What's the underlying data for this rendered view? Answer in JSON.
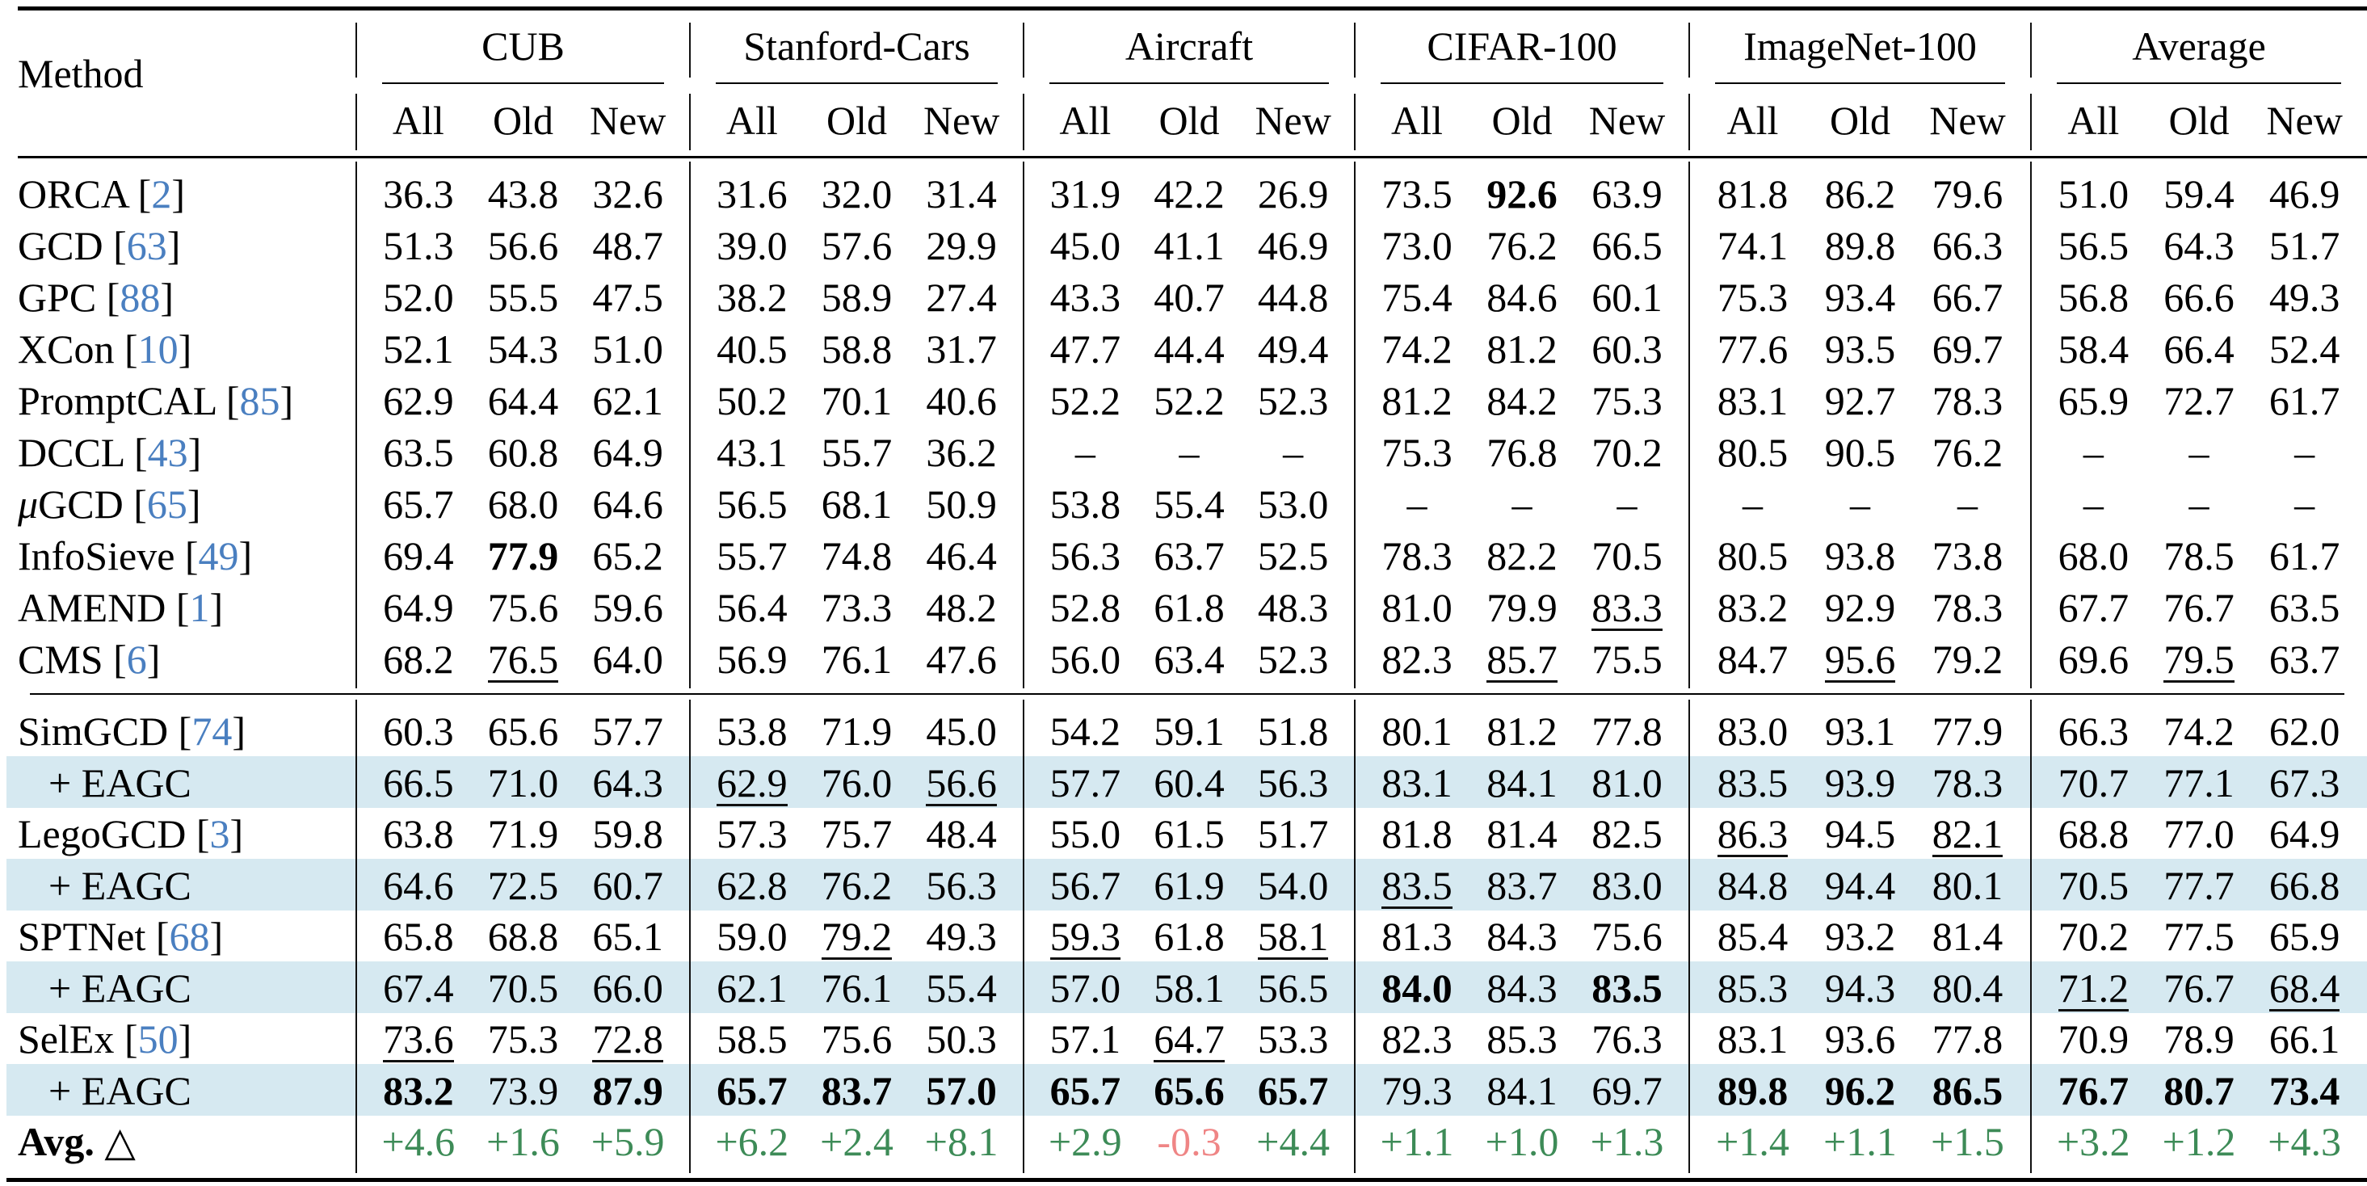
{
  "table": {
    "method_header": "Method",
    "datasets": [
      "CUB",
      "Stanford-Cars",
      "Aircraft",
      "CIFAR-100",
      "ImageNet-100",
      "Average"
    ],
    "subcolumns": [
      "All",
      "Old",
      "New"
    ],
    "avg_delta_label": "Avg. △",
    "colors": {
      "highlight_row": "#d6e9f1",
      "citation": "#4a7fc0",
      "positive_delta": "#3d8b57",
      "negative_delta": "#ef8585"
    },
    "blocks": [
      {
        "rows": [
          {
            "method": "ORCA",
            "cite": "2",
            "values": [
              "36.3",
              "43.8",
              "32.6",
              "31.6",
              "32.0",
              "31.4",
              "31.9",
              "42.2",
              "26.9",
              "73.5",
              "92.6",
              "63.9",
              "81.8",
              "86.2",
              "79.6",
              "51.0",
              "59.4",
              "46.9"
            ],
            "bold": [
              10
            ],
            "underline": []
          },
          {
            "method": "GCD",
            "cite": "63",
            "values": [
              "51.3",
              "56.6",
              "48.7",
              "39.0",
              "57.6",
              "29.9",
              "45.0",
              "41.1",
              "46.9",
              "73.0",
              "76.2",
              "66.5",
              "74.1",
              "89.8",
              "66.3",
              "56.5",
              "64.3",
              "51.7"
            ],
            "bold": [],
            "underline": []
          },
          {
            "method": "GPC",
            "cite": "88",
            "values": [
              "52.0",
              "55.5",
              "47.5",
              "38.2",
              "58.9",
              "27.4",
              "43.3",
              "40.7",
              "44.8",
              "75.4",
              "84.6",
              "60.1",
              "75.3",
              "93.4",
              "66.7",
              "56.8",
              "66.6",
              "49.3"
            ],
            "bold": [],
            "underline": []
          },
          {
            "method": "XCon",
            "cite": "10",
            "values": [
              "52.1",
              "54.3",
              "51.0",
              "40.5",
              "58.8",
              "31.7",
              "47.7",
              "44.4",
              "49.4",
              "74.2",
              "81.2",
              "60.3",
              "77.6",
              "93.5",
              "69.7",
              "58.4",
              "66.4",
              "52.4"
            ],
            "bold": [],
            "underline": []
          },
          {
            "method": "PromptCAL",
            "cite": "85",
            "values": [
              "62.9",
              "64.4",
              "62.1",
              "50.2",
              "70.1",
              "40.6",
              "52.2",
              "52.2",
              "52.3",
              "81.2",
              "84.2",
              "75.3",
              "83.1",
              "92.7",
              "78.3",
              "65.9",
              "72.7",
              "61.7"
            ],
            "bold": [],
            "underline": []
          },
          {
            "method": "DCCL",
            "cite": "43",
            "values": [
              "63.5",
              "60.8",
              "64.9",
              "43.1",
              "55.7",
              "36.2",
              "–",
              "–",
              "–",
              "75.3",
              "76.8",
              "70.2",
              "80.5",
              "90.5",
              "76.2",
              "–",
              "–",
              "–"
            ],
            "bold": [],
            "underline": []
          },
          {
            "method": "μGCD",
            "cite": "65",
            "values": [
              "65.7",
              "68.0",
              "64.6",
              "56.5",
              "68.1",
              "50.9",
              "53.8",
              "55.4",
              "53.0",
              "–",
              "–",
              "–",
              "–",
              "–",
              "–",
              "–",
              "–",
              "–"
            ],
            "bold": [],
            "underline": []
          },
          {
            "method": "InfoSieve",
            "cite": "49",
            "values": [
              "69.4",
              "77.9",
              "65.2",
              "55.7",
              "74.8",
              "46.4",
              "56.3",
              "63.7",
              "52.5",
              "78.3",
              "82.2",
              "70.5",
              "80.5",
              "93.8",
              "73.8",
              "68.0",
              "78.5",
              "61.7"
            ],
            "bold": [
              1
            ],
            "underline": []
          },
          {
            "method": "AMEND",
            "cite": "1",
            "values": [
              "64.9",
              "75.6",
              "59.6",
              "56.4",
              "73.3",
              "48.2",
              "52.8",
              "61.8",
              "48.3",
              "81.0",
              "79.9",
              "83.3",
              "83.2",
              "92.9",
              "78.3",
              "67.7",
              "76.7",
              "63.5"
            ],
            "bold": [],
            "underline": [
              11
            ]
          },
          {
            "method": "CMS",
            "cite": "6",
            "values": [
              "68.2",
              "76.5",
              "64.0",
              "56.9",
              "76.1",
              "47.6",
              "56.0",
              "63.4",
              "52.3",
              "82.3",
              "85.7",
              "75.5",
              "84.7",
              "95.6",
              "79.2",
              "69.6",
              "79.5",
              "63.7"
            ],
            "bold": [],
            "underline": [
              1,
              10,
              13,
              16
            ]
          }
        ]
      },
      {
        "rows": [
          {
            "method": "SimGCD",
            "cite": "74",
            "values": [
              "60.3",
              "65.6",
              "57.7",
              "53.8",
              "71.9",
              "45.0",
              "54.2",
              "59.1",
              "51.8",
              "80.1",
              "81.2",
              "77.8",
              "83.0",
              "93.1",
              "77.9",
              "66.3",
              "74.2",
              "62.0"
            ],
            "bold": [],
            "underline": []
          },
          {
            "method": "+ EAGC",
            "highlight": true,
            "values": [
              "66.5",
              "71.0",
              "64.3",
              "62.9",
              "76.0",
              "56.6",
              "57.7",
              "60.4",
              "56.3",
              "83.1",
              "84.1",
              "81.0",
              "83.5",
              "93.9",
              "78.3",
              "70.7",
              "77.1",
              "67.3"
            ],
            "bold": [],
            "underline": [
              3,
              5
            ]
          },
          {
            "method": "LegoGCD",
            "cite": "3",
            "values": [
              "63.8",
              "71.9",
              "59.8",
              "57.3",
              "75.7",
              "48.4",
              "55.0",
              "61.5",
              "51.7",
              "81.8",
              "81.4",
              "82.5",
              "86.3",
              "94.5",
              "82.1",
              "68.8",
              "77.0",
              "64.9"
            ],
            "bold": [],
            "underline": [
              12,
              14
            ]
          },
          {
            "method": "+ EAGC",
            "highlight": true,
            "values": [
              "64.6",
              "72.5",
              "60.7",
              "62.8",
              "76.2",
              "56.3",
              "56.7",
              "61.9",
              "54.0",
              "83.5",
              "83.7",
              "83.0",
              "84.8",
              "94.4",
              "80.1",
              "70.5",
              "77.7",
              "66.8"
            ],
            "bold": [],
            "underline": [
              9
            ]
          },
          {
            "method": "SPTNet",
            "cite": "68",
            "values": [
              "65.8",
              "68.8",
              "65.1",
              "59.0",
              "79.2",
              "49.3",
              "59.3",
              "61.8",
              "58.1",
              "81.3",
              "84.3",
              "75.6",
              "85.4",
              "93.2",
              "81.4",
              "70.2",
              "77.5",
              "65.9"
            ],
            "bold": [],
            "underline": [
              4,
              6,
              8
            ]
          },
          {
            "method": "+ EAGC",
            "highlight": true,
            "values": [
              "67.4",
              "70.5",
              "66.0",
              "62.1",
              "76.1",
              "55.4",
              "57.0",
              "58.1",
              "56.5",
              "84.0",
              "84.3",
              "83.5",
              "85.3",
              "94.3",
              "80.4",
              "71.2",
              "76.7",
              "68.4"
            ],
            "bold": [
              9,
              11
            ],
            "underline": [
              15,
              17
            ]
          },
          {
            "method": "SelEx",
            "cite": "50",
            "values": [
              "73.6",
              "75.3",
              "72.8",
              "58.5",
              "75.6",
              "50.3",
              "57.1",
              "64.7",
              "53.3",
              "82.3",
              "85.3",
              "76.3",
              "83.1",
              "93.6",
              "77.8",
              "70.9",
              "78.9",
              "66.1"
            ],
            "bold": [],
            "underline": [
              0,
              2,
              7
            ]
          },
          {
            "method": "+ EAGC",
            "highlight": true,
            "values": [
              "83.2",
              "73.9",
              "87.9",
              "65.7",
              "83.7",
              "57.0",
              "65.7",
              "65.6",
              "65.7",
              "79.3",
              "84.1",
              "69.7",
              "89.8",
              "96.2",
              "86.5",
              "76.7",
              "80.7",
              "73.4"
            ],
            "bold": [
              0,
              2,
              3,
              4,
              5,
              6,
              7,
              8,
              12,
              13,
              14,
              15,
              16,
              17
            ],
            "underline": []
          }
        ]
      }
    ],
    "avg_delta": {
      "values": [
        "+4.6",
        "+1.6",
        "+5.9",
        "+6.2",
        "+2.4",
        "+8.1",
        "+2.9",
        "-0.3",
        "+4.4",
        "+1.1",
        "+1.0",
        "+1.3",
        "+1.4",
        "+1.1",
        "+1.5",
        "+3.2",
        "+1.2",
        "+4.3"
      ]
    }
  }
}
